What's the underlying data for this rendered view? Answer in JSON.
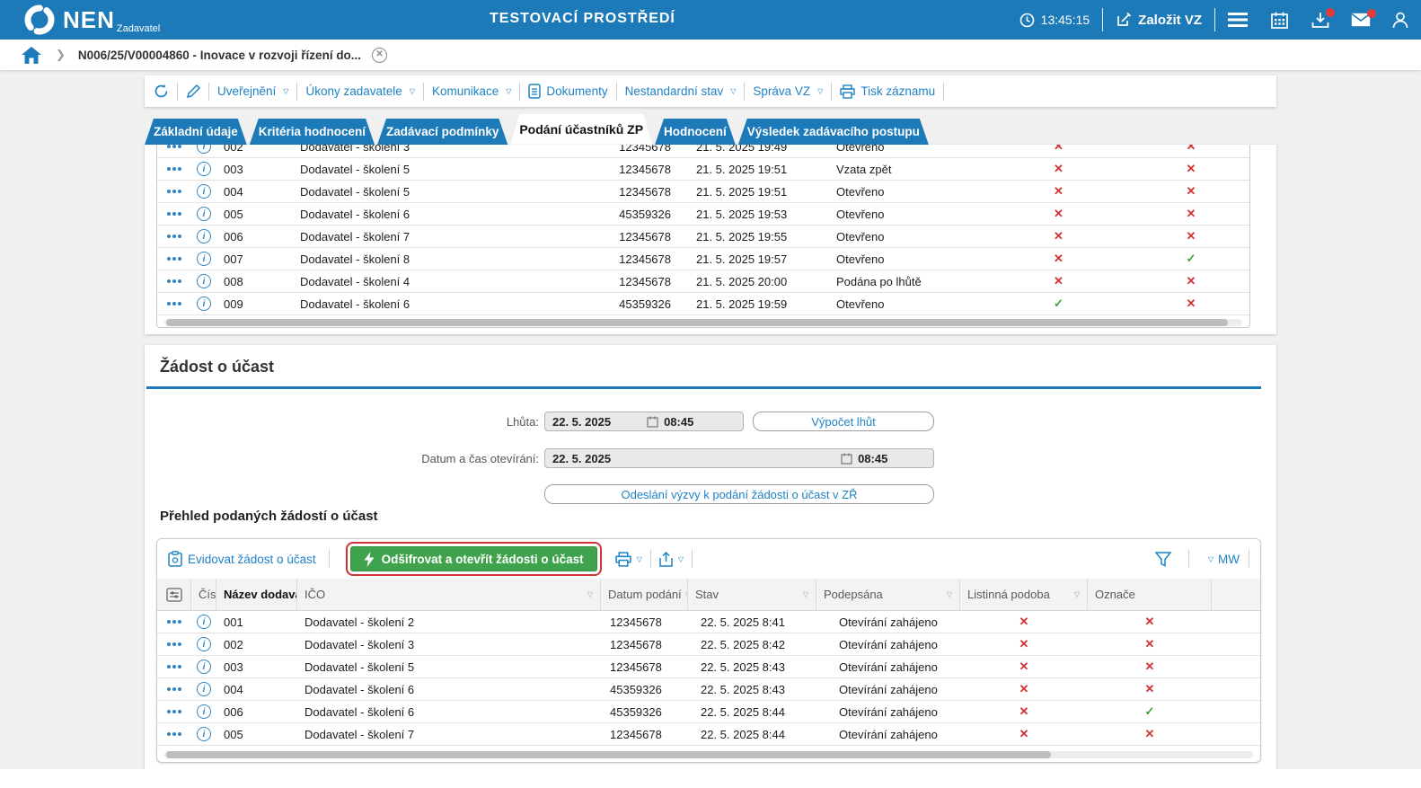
{
  "colors": {
    "primary_blue": "#1d7ab8",
    "link_blue": "#1e82c4",
    "green_button": "#3fa24c",
    "red_x": "#d23434",
    "green_check": "#3aa53f",
    "annotation_red": "#cf3434"
  },
  "topbar": {
    "brand": "NEN",
    "brand_sub": "Zadavatel",
    "title": "TESTOVACÍ PROSTŘEDÍ",
    "time": "13:45:15",
    "new_vz_label": "Založit VZ"
  },
  "breadcrumb": {
    "item": "N006/25/V00004860 - Inovace v rozvoji řízení do..."
  },
  "actions": {
    "uverejneni": "Uveřejnění",
    "ukony_zadavatele": "Úkony zadavatele",
    "komunikace": "Komunikace",
    "dokumenty": "Dokumenty",
    "nestandardni_stav": "Nestandardní stav",
    "sprava_vz": "Správa VZ",
    "tisk_zaznamu": "Tisk záznamu"
  },
  "tabs": [
    {
      "label": "Základní údaje",
      "active": false
    },
    {
      "label": "Kritéria hodnocení",
      "active": false
    },
    {
      "label": "Zadávací podmínky",
      "active": false
    },
    {
      "label": "Podání účastníků ZP",
      "active": true
    },
    {
      "label": "Hodnocení",
      "active": false
    },
    {
      "label": "Výsledek zadávacího postupu",
      "active": false
    }
  ],
  "table1": {
    "rows": [
      {
        "num": "002",
        "name": "Dodavatel - školení 3",
        "ico": "12345678",
        "date": "21. 5. 2025 19:49",
        "status": "Otevřeno",
        "m1": "x",
        "m2": "x"
      },
      {
        "num": "003",
        "name": "Dodavatel - školení 5",
        "ico": "12345678",
        "date": "21. 5. 2025 19:51",
        "status": "Vzata zpět",
        "m1": "x",
        "m2": "x"
      },
      {
        "num": "004",
        "name": "Dodavatel - školení 5",
        "ico": "12345678",
        "date": "21. 5. 2025 19:51",
        "status": "Otevřeno",
        "m1": "x",
        "m2": "x"
      },
      {
        "num": "005",
        "name": "Dodavatel - školení 6",
        "ico": "45359326",
        "date": "21. 5. 2025 19:53",
        "status": "Otevřeno",
        "m1": "x",
        "m2": "x"
      },
      {
        "num": "006",
        "name": "Dodavatel - školení 7",
        "ico": "12345678",
        "date": "21. 5. 2025 19:55",
        "status": "Otevřeno",
        "m1": "x",
        "m2": "x"
      },
      {
        "num": "007",
        "name": "Dodavatel - školení 8",
        "ico": "12345678",
        "date": "21. 5. 2025 19:57",
        "status": "Otevřeno",
        "m1": "x",
        "m2": "ok"
      },
      {
        "num": "008",
        "name": "Dodavatel - školení 4",
        "ico": "12345678",
        "date": "21. 5. 2025 20:00",
        "status": "Podána po lhůtě",
        "m1": "x",
        "m2": "x"
      },
      {
        "num": "009",
        "name": "Dodavatel - školení 6",
        "ico": "45359326",
        "date": "21. 5. 2025 19:59",
        "status": "Otevřeno",
        "m1": "ok",
        "m2": "x"
      }
    ]
  },
  "zadost": {
    "heading": "Žádost o účast",
    "lhuta_label": "Lhůta:",
    "lhuta_date": "22. 5. 2025",
    "lhuta_time": "08:45",
    "vypocet_btn": "Výpočet lhůt",
    "oteviranni_label": "Datum a čas otevírání:",
    "oteviranni_date": "22. 5. 2025",
    "oteviranni_time": "08:45",
    "odeslani_btn": "Odeslání výzvy k podání žádosti o účast v ZŘ"
  },
  "prehled": {
    "heading": "Přehled podaných žádostí o účast",
    "evidovat_btn": "Evidovat žádost o účast",
    "odsifrovat_btn": "Odšifrovat a otevřít žádosti o účast",
    "mw_label": "MW",
    "headers": [
      "Číslo",
      "Název dodavatele",
      "IČO",
      "Datum podání",
      "Stav",
      "Podepsána",
      "Listinná podoba",
      "Označe"
    ],
    "sorted_column": "Název dodavatele",
    "rows": [
      {
        "num": "001",
        "name": "Dodavatel - školení 2",
        "ico": "12345678",
        "date": "22. 5. 2025 8:41",
        "status": "Otevírání zahájeno",
        "m1": "x",
        "m2": "x"
      },
      {
        "num": "002",
        "name": "Dodavatel - školení 3",
        "ico": "12345678",
        "date": "22. 5. 2025 8:42",
        "status": "Otevírání zahájeno",
        "m1": "x",
        "m2": "x"
      },
      {
        "num": "003",
        "name": "Dodavatel - školení 5",
        "ico": "12345678",
        "date": "22. 5. 2025 8:43",
        "status": "Otevírání zahájeno",
        "m1": "x",
        "m2": "x"
      },
      {
        "num": "004",
        "name": "Dodavatel - školení 6",
        "ico": "45359326",
        "date": "22. 5. 2025 8:43",
        "status": "Otevírání zahájeno",
        "m1": "x",
        "m2": "x"
      },
      {
        "num": "006",
        "name": "Dodavatel - školení 6",
        "ico": "45359326",
        "date": "22. 5. 2025 8:44",
        "status": "Otevírání zahájeno",
        "m1": "x",
        "m2": "ok"
      },
      {
        "num": "005",
        "name": "Dodavatel - školení 7",
        "ico": "12345678",
        "date": "22. 5. 2025 8:44",
        "status": "Otevírání zahájeno",
        "m1": "x",
        "m2": "x"
      }
    ]
  },
  "icons": {
    "clock": "clock-icon",
    "edit": "edit-icon",
    "menu": "hamburger-icon",
    "calendar": "calendar-icon",
    "download": "download-icon",
    "mail": "mail-icon",
    "user": "user-icon",
    "home": "home-icon",
    "close": "close-icon",
    "refresh": "refresh-icon",
    "pencil": "pencil-icon",
    "document": "document-icon",
    "printer": "printer-icon",
    "export": "export-icon",
    "filter": "filter-icon",
    "lightning": "lightning-icon",
    "clipboard": "clipboard-icon",
    "settings": "column-settings-icon",
    "info": "info-icon",
    "row_menu": "row-menu-icon"
  }
}
